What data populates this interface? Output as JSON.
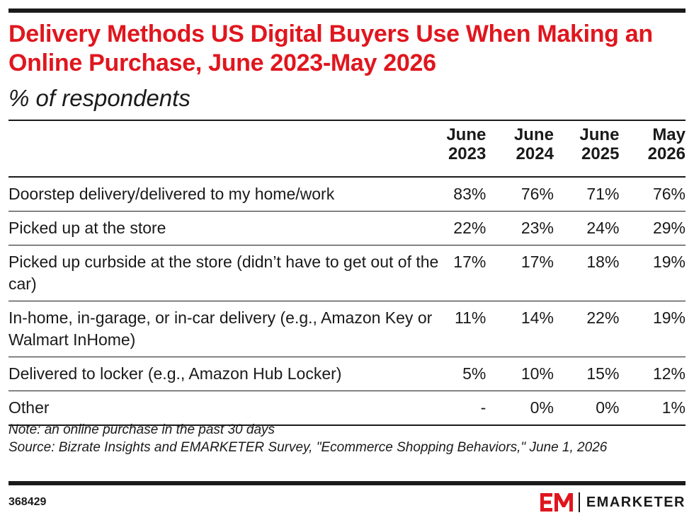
{
  "title": "Delivery Methods US Digital Buyers Use When Making an Online Purchase, June 2023-May 2026",
  "subtitle": "% of respondents",
  "chart_data": {
    "type": "table",
    "title": "Delivery Methods US Digital Buyers Use When Making an Online Purchase, June 2023-May 2026",
    "subtitle": "% of respondents",
    "columns": [
      {
        "line1": "June",
        "line2": "2023"
      },
      {
        "line1": "June",
        "line2": "2024"
      },
      {
        "line1": "June",
        "line2": "2025"
      },
      {
        "line1": "May",
        "line2": "2026"
      }
    ],
    "rows": [
      {
        "label": "Doorstep delivery/delivered to my home/work",
        "values": [
          "83%",
          "76%",
          "71%",
          "76%"
        ]
      },
      {
        "label": "Picked up at the store",
        "values": [
          "22%",
          "23%",
          "24%",
          "29%"
        ]
      },
      {
        "label": "Picked up curbside at the store (didn’t have to get out of the car)",
        "values": [
          "17%",
          "17%",
          "18%",
          "19%"
        ]
      },
      {
        "label": "In-home, in-garage, or in-car delivery (e.g., Amazon Key or Walmart InHome)",
        "values": [
          "11%",
          "14%",
          "22%",
          "19%"
        ]
      },
      {
        "label": "Delivered to locker (e.g., Amazon Hub Locker)",
        "values": [
          "5%",
          "10%",
          "15%",
          "12%"
        ]
      },
      {
        "label": "Other",
        "values": [
          "-",
          "0%",
          "0%",
          "1%"
        ]
      }
    ]
  },
  "footer": {
    "note": "Note: an online purchase in the past 30 days",
    "source": "Source: Bizrate Insights and EMARKETER Survey, \"Ecommerce Shopping Behaviors,\" June 1, 2026",
    "chart_id": "368429",
    "brand_name": "EMARKETER",
    "brand_icon": "emarketer-logo-icon"
  },
  "colors": {
    "title": "#e0161e",
    "text": "#1a1a1a",
    "logo": "#e0161e"
  }
}
